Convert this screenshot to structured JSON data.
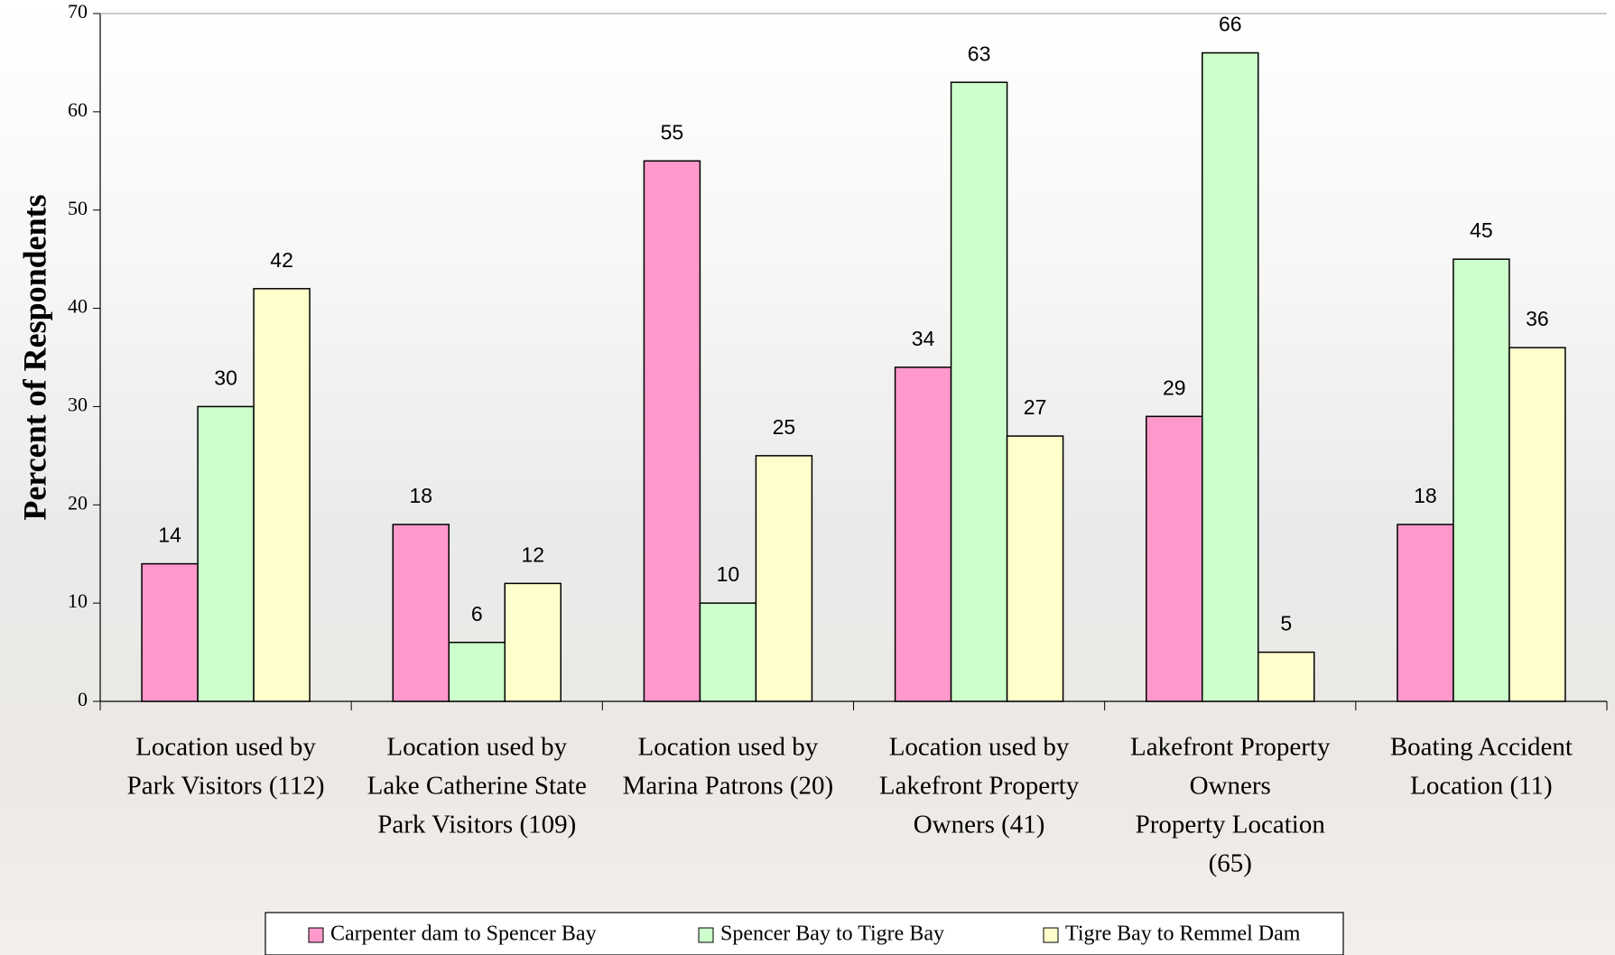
{
  "chart_data": {
    "type": "bar",
    "y_label": "Percent of Respondents",
    "categories": [
      [
        "Location used by",
        "Park Visitors (112)"
      ],
      [
        "Location used by",
        "Lake Catherine State",
        "Park Visitors (109)"
      ],
      [
        "Location used by",
        "Marina Patrons (20)"
      ],
      [
        "Location used by",
        "Lakefront Property",
        "Owners (41)"
      ],
      [
        "Lakefront Property",
        "Owners",
        "Property Location",
        "(65)"
      ],
      [
        "Boating Accident",
        "Location (11)"
      ]
    ],
    "series": [
      {
        "name": "Carpenter dam to Spencer Bay",
        "color": "#ff99cc",
        "values": [
          14,
          18,
          55,
          34,
          29,
          18
        ]
      },
      {
        "name": "Spencer Bay to Tigre Bay",
        "color": "#ccffcc",
        "values": [
          30,
          6,
          10,
          63,
          66,
          45
        ]
      },
      {
        "name": "Tigre Bay to Remmel Dam",
        "color": "#ffffcc",
        "values": [
          42,
          12,
          25,
          27,
          5,
          36
        ]
      }
    ],
    "ylim": [
      0,
      70
    ],
    "yticks": [
      0,
      10,
      20,
      30,
      40,
      50,
      60,
      70
    ],
    "legend": "bottom"
  }
}
